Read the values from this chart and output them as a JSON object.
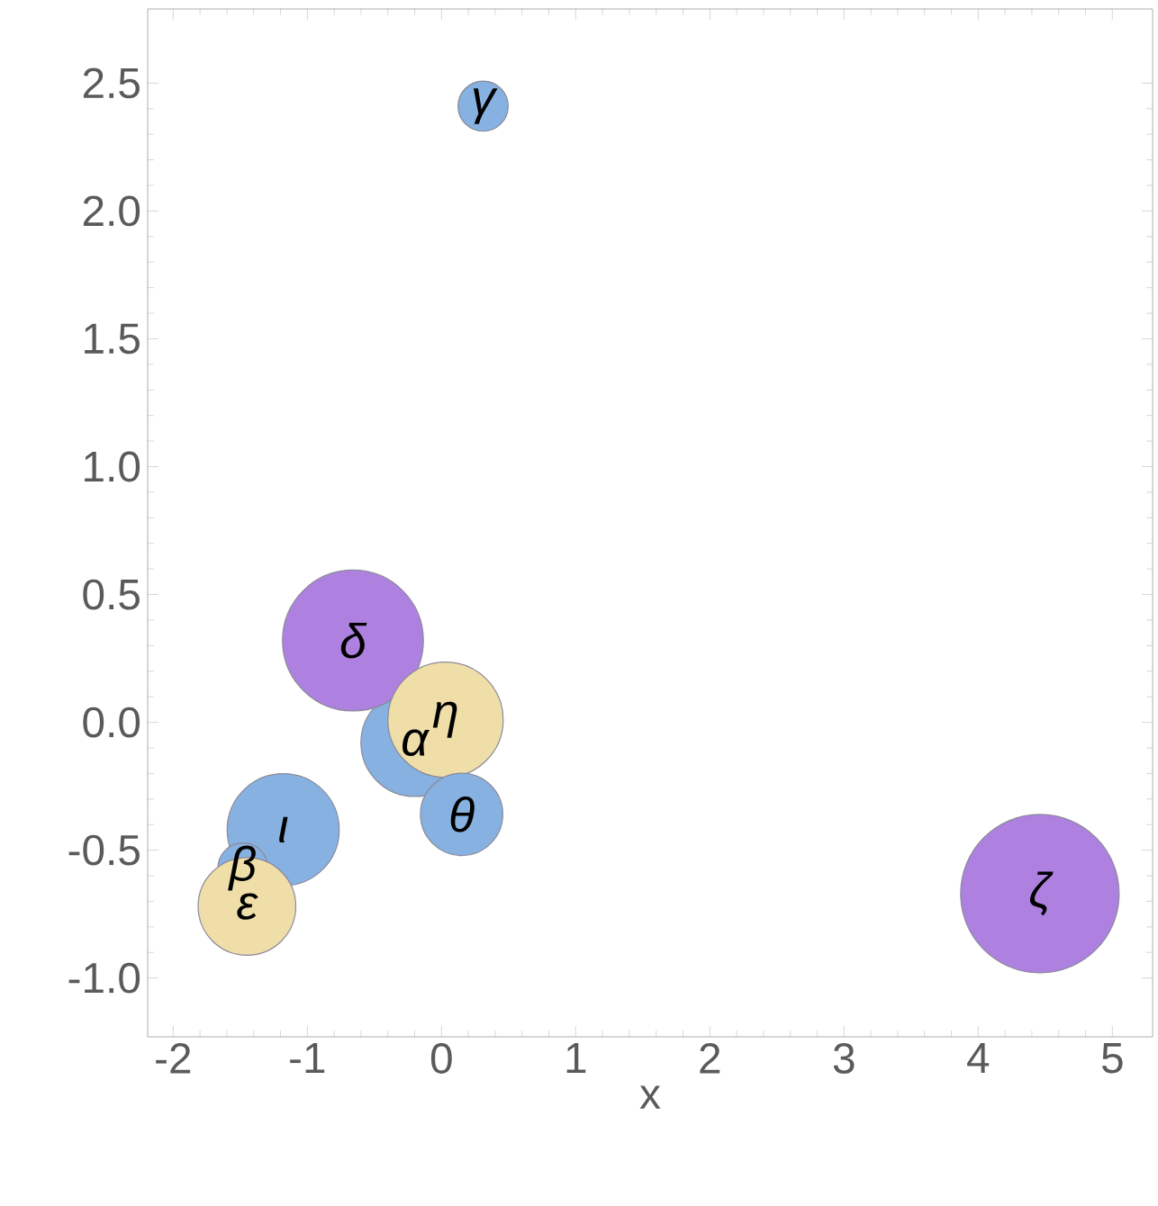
{
  "chart_data": {
    "type": "bubble",
    "xlabel": "x",
    "xlim": [
      -2.19,
      5.3
    ],
    "ylim": [
      -1.23,
      2.79
    ],
    "xticks": [
      -2,
      -1,
      0,
      1,
      2,
      3,
      4,
      5
    ],
    "yticks": [
      {
        "value": -1,
        "label": "-1.0"
      },
      {
        "value": -0.5,
        "label": "-0.5"
      },
      {
        "value": 0,
        "label": "0.0"
      },
      {
        "value": 0.5,
        "label": "0.5"
      },
      {
        "value": 1,
        "label": "1.0"
      },
      {
        "value": 1.5,
        "label": "1.5"
      },
      {
        "value": 2,
        "label": "2.0"
      },
      {
        "value": 2.5,
        "label": "2.5"
      }
    ],
    "grid": false,
    "series": [
      {
        "color": "#86b1e0",
        "x": [
          -1.18
        ],
        "values": [
          -0.42
        ],
        "sizes": [
          0.5
        ]
      },
      {
        "color": "#86b1e0",
        "x": [
          -1.48
        ],
        "values": [
          -0.57
        ],
        "sizes": [
          0.1
        ]
      },
      {
        "color": "#86b1e0",
        "x": [
          -0.2
        ],
        "values": [
          -0.08
        ],
        "sizes": [
          0.46
        ]
      },
      {
        "color": "#ae80e0",
        "x": [
          -0.66
        ],
        "values": [
          0.32
        ],
        "sizes": [
          0.79
        ]
      },
      {
        "color": "#efdea8",
        "x": [
          0.03
        ],
        "values": [
          0.01
        ],
        "sizes": [
          0.53
        ]
      },
      {
        "color": "#86b1e0",
        "x": [
          0.15
        ],
        "values": [
          -0.36
        ],
        "sizes": [
          0.27
        ]
      },
      {
        "color": "#86b1e0",
        "x": [
          0.31
        ],
        "values": [
          2.41
        ],
        "sizes": [
          0.1
        ]
      },
      {
        "color": "#efdea8",
        "x": [
          -1.45
        ],
        "values": [
          -0.72
        ],
        "sizes": [
          0.38
        ]
      },
      {
        "color": "#ae80e0",
        "x": [
          4.46
        ],
        "values": [
          -0.67
        ],
        "sizes": [
          1
        ]
      }
    ],
    "annotations": [
      {
        "text": "ι",
        "x": -1.18,
        "y": -0.42
      },
      {
        "text": "β",
        "x": -1.48,
        "y": -0.57
      },
      {
        "text": "α",
        "x": -0.2,
        "y": -0.08
      },
      {
        "text": "δ",
        "x": -0.66,
        "y": 0.32
      },
      {
        "text": "η",
        "x": 0.03,
        "y": 0.01
      },
      {
        "text": "θ",
        "x": 0.15,
        "y": -0.36
      },
      {
        "text": "γ",
        "x": 0.31,
        "y": 2.41
      },
      {
        "text": "ε",
        "x": -1.45,
        "y": -0.72
      },
      {
        "text": "ζ",
        "x": 4.46,
        "y": -0.67
      }
    ]
  }
}
